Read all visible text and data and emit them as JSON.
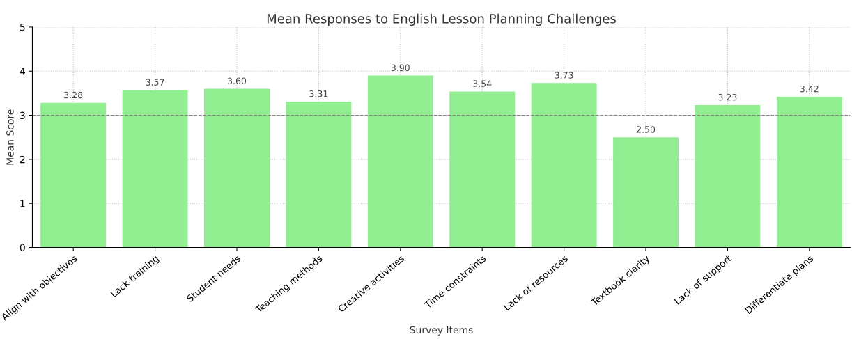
{
  "chart_data": {
    "type": "bar",
    "title": "Mean Responses to English Lesson Planning Challenges",
    "xlabel": "Survey Items",
    "ylabel": "Mean Score",
    "categories": [
      "Align with objectives",
      "Lack training",
      "Student needs",
      "Teaching methods",
      "Creative activities",
      "Time constraints",
      "Lack of resources",
      "Textbook clarity",
      "Lack of support",
      "Differentiate plans"
    ],
    "values": [
      3.28,
      3.57,
      3.6,
      3.31,
      3.9,
      3.54,
      3.73,
      2.5,
      3.23,
      3.42
    ],
    "value_labels": [
      "3.28",
      "3.57",
      "3.60",
      "3.31",
      "3.90",
      "3.54",
      "3.73",
      "2.50",
      "3.23",
      "3.42"
    ],
    "color": "#90ee90",
    "ylim": [
      0,
      5
    ],
    "yticks": [
      0,
      1,
      2,
      3,
      4,
      5
    ],
    "grid": true,
    "ref_lines": [
      {
        "axis": "y",
        "value": 3,
        "label": null,
        "color": "#808080",
        "line_style": "dashed"
      }
    ]
  }
}
